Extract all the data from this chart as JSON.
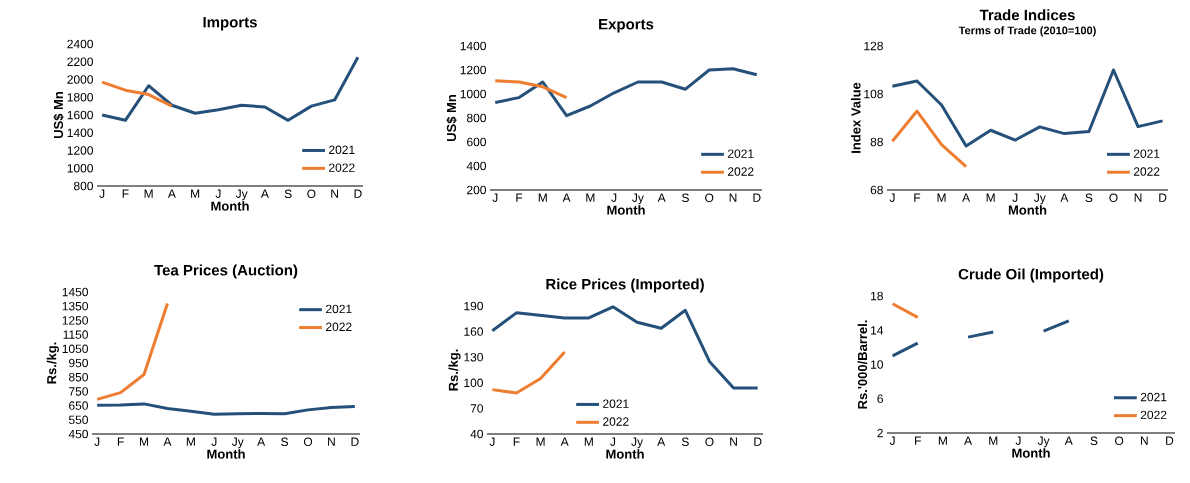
{
  "chart_data": [
    {
      "type": "line",
      "title": "Imports",
      "xlabel": "Month",
      "ylabel": "US$ Mn",
      "categories": [
        "J",
        "F",
        "M",
        "A",
        "M",
        "J",
        "Jy",
        "A",
        "S",
        "O",
        "N",
        "D"
      ],
      "ylim": [
        800,
        2400
      ],
      "yticks": [
        800,
        1000,
        1200,
        1400,
        1600,
        1800,
        2000,
        2200,
        2400
      ],
      "legend": "bottom right",
      "line_style": "solid",
      "series": [
        {
          "name": "2021",
          "color": "#24507a",
          "values": [
            1600,
            1540,
            1930,
            1710,
            1620,
            1660,
            1710,
            1690,
            1540,
            1700,
            1770,
            2250
          ]
        },
        {
          "name": "2022",
          "color": "#ed7d31",
          "values": [
            1970,
            1880,
            1830,
            1700,
            null,
            null,
            null,
            null,
            null,
            null,
            null,
            null
          ]
        }
      ]
    },
    {
      "type": "line",
      "title": "Exports",
      "xlabel": "Month",
      "ylabel": "US$ Mn",
      "categories": [
        "J",
        "F",
        "M",
        "A",
        "M",
        "J",
        "Jy",
        "A",
        "S",
        "O",
        "N",
        "D"
      ],
      "ylim": [
        200,
        1400
      ],
      "yticks": [
        200,
        400,
        600,
        800,
        1000,
        1200,
        1400
      ],
      "legend": "bottom right",
      "line_style": "solid",
      "series": [
        {
          "name": "2021",
          "color": "#24507a",
          "values": [
            930,
            970,
            1100,
            820,
            900,
            1010,
            1100,
            1100,
            1040,
            1200,
            1210,
            1160
          ]
        },
        {
          "name": "2022",
          "color": "#ed7d31",
          "values": [
            1110,
            1100,
            1060,
            970,
            null,
            null,
            null,
            null,
            null,
            null,
            null,
            null
          ]
        }
      ]
    },
    {
      "type": "line",
      "title": "Trade Indices",
      "subtitle": "Terms of Trade (2010=100)",
      "xlabel": "Month",
      "ylabel": "Index Value",
      "categories": [
        "J",
        "F",
        "M",
        "A",
        "M",
        "J",
        "Jy",
        "A",
        "S",
        "O",
        "N",
        "D"
      ],
      "ylim": [
        68,
        128
      ],
      "yticks": [
        68,
        88,
        108,
        128
      ],
      "legend": "bottom right",
      "line_style": "solid",
      "series": [
        {
          "name": "2021",
          "color": "#24507a",
          "values": [
            111.2,
            113.4,
            103.4,
            86.3,
            92.9,
            88.8,
            94.3,
            91.5,
            92.4,
            118,
            94.4,
            96.8
          ]
        },
        {
          "name": "2022",
          "color": "#ed7d31",
          "values": [
            88.3,
            100.9,
            86.9,
            77.7,
            null,
            null,
            null,
            null,
            null,
            null,
            null,
            null
          ]
        }
      ]
    },
    {
      "type": "line",
      "title": "Tea Prices (Auction)",
      "xlabel": "Month",
      "ylabel": "Rs./kg.",
      "categories": [
        "J",
        "F",
        "M",
        "A",
        "M",
        "J",
        "Jy",
        "A",
        "S",
        "O",
        "N",
        "D"
      ],
      "ylim": [
        450,
        1450
      ],
      "yticks": [
        450,
        550,
        650,
        750,
        850,
        950,
        1050,
        1150,
        1250,
        1350,
        1450
      ],
      "legend": "top right",
      "line_style": "solid",
      "series": [
        {
          "name": "2021",
          "color": "#24507a",
          "values": [
            652,
            655,
            662,
            629,
            611,
            589,
            593,
            595,
            593,
            620,
            637,
            643
          ]
        },
        {
          "name": "2022",
          "color": "#ed7d31",
          "values": [
            694,
            741,
            869,
            1369,
            null,
            null,
            null,
            null,
            null,
            null,
            null,
            null
          ]
        }
      ]
    },
    {
      "type": "line",
      "title": "Rice Prices (Imported)",
      "xlabel": "Month",
      "ylabel": "Rs./kg.",
      "categories": [
        "J",
        "F",
        "M",
        "A",
        "M",
        "J",
        "Jy",
        "A",
        "S",
        "O",
        "N",
        "D"
      ],
      "ylim": [
        40,
        190
      ],
      "yticks": [
        40,
        70,
        100,
        130,
        160,
        190
      ],
      "legend": "bottom",
      "line_style": "solid",
      "series": [
        {
          "name": "2021",
          "color": "#24507a",
          "values": [
            161,
            182,
            179,
            176,
            176,
            189,
            171,
            164,
            185,
            125,
            94,
            94
          ]
        },
        {
          "name": "2022",
          "color": "#ed7d31",
          "values": [
            92,
            88,
            105,
            136,
            null,
            null,
            null,
            null,
            null,
            null,
            null,
            null
          ]
        }
      ]
    },
    {
      "type": "line",
      "title": "Crude Oil (Imported)",
      "xlabel": "Month",
      "ylabel": "Rs.'000/Barrel.",
      "categories": [
        "J",
        "F",
        "M",
        "A",
        "M",
        "J",
        "Jy",
        "A",
        "S",
        "O",
        "N",
        "D"
      ],
      "ylim": [
        2,
        18
      ],
      "yticks": [
        2,
        6,
        10,
        14,
        18
      ],
      "legend": "bottom right",
      "line_style": "solid",
      "series": [
        {
          "name": "2021",
          "color": "#24507a",
          "values": [
            11.0,
            12.5,
            null,
            13.2,
            13.8,
            null,
            13.9,
            15.1,
            null,
            null,
            null,
            null
          ]
        },
        {
          "name": "2022",
          "color": "#ed7d31",
          "values": [
            17.1,
            15.5,
            null,
            null,
            null,
            null,
            null,
            null,
            null,
            null,
            null,
            null
          ]
        }
      ]
    }
  ]
}
